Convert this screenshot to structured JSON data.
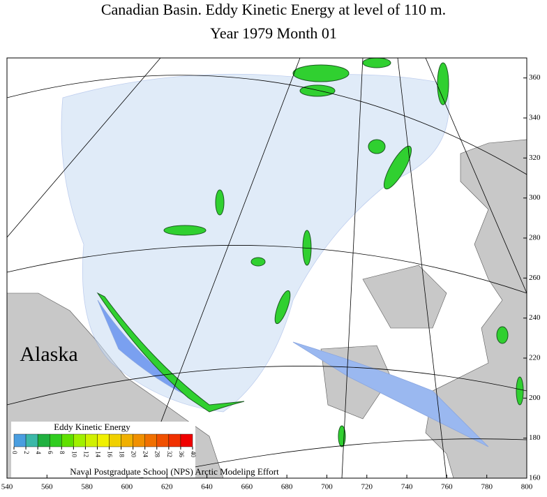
{
  "title": [
    "Canadian Basin. Eddy Kinetic Energy at level of 110 m.",
    "Year 1979   Month  01"
  ],
  "map": {
    "xlim": [
      540,
      800
    ],
    "ylim": [
      160,
      370
    ],
    "xticks": [
      540,
      560,
      580,
      600,
      620,
      640,
      660,
      680,
      700,
      720,
      740,
      760,
      780,
      800
    ],
    "yticks": [
      160,
      180,
      200,
      220,
      240,
      260,
      280,
      300,
      320,
      340,
      360
    ],
    "label": "Alaska"
  },
  "colorbar": {
    "title": "Eddy Kinetic Energy",
    "ticks": [
      0,
      2,
      4,
      6,
      8,
      10,
      12,
      14,
      16,
      18,
      20,
      24,
      28,
      32,
      36,
      40
    ],
    "colors": [
      "#4a9ee0",
      "#3cb8a8",
      "#20b040",
      "#30cc20",
      "#60e000",
      "#a0f000",
      "#d0f000",
      "#f0f000",
      "#f0d000",
      "#f0b000",
      "#f09000",
      "#f07000",
      "#f05000",
      "#f03000",
      "#f00000"
    ]
  },
  "credit": "Naval Postgraduate School (NPS) Arctic Modeling Effort"
}
